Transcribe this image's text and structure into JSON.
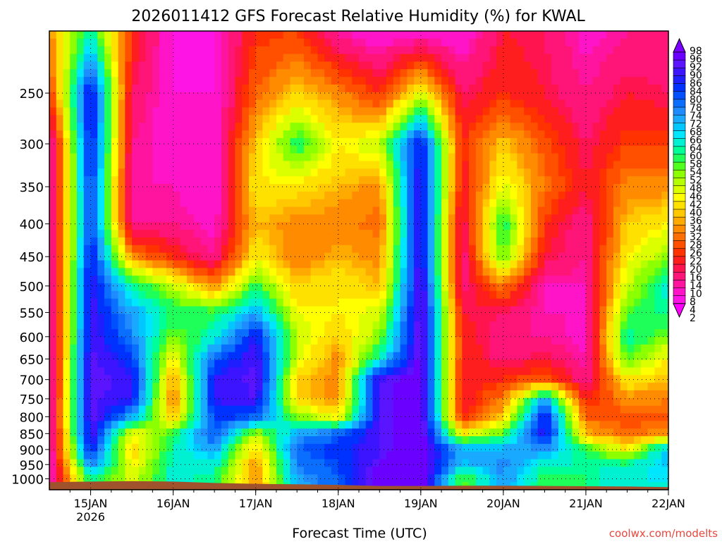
{
  "chart_data": {
    "type": "heatmap",
    "title": "2026011412 GFS Forecast Relative Humidity (%) for KWAL",
    "xlabel": "Forecast Time (UTC)",
    "ylabel": "",
    "watermark": "coolwx.com/modelts",
    "x_start": "2026-01-14 12Z",
    "x_end": "2026-01-22 00Z",
    "x_ticks": [
      {
        "label": "15JAN",
        "sublabel": "2026",
        "hour": 12
      },
      {
        "label": "16JAN",
        "sublabel": "",
        "hour": 36
      },
      {
        "label": "17JAN",
        "sublabel": "",
        "hour": 60
      },
      {
        "label": "18JAN",
        "sublabel": "",
        "hour": 84
      },
      {
        "label": "19JAN",
        "sublabel": "",
        "hour": 108
      },
      {
        "label": "20JAN",
        "sublabel": "",
        "hour": 132
      },
      {
        "label": "21JAN",
        "sublabel": "",
        "hour": 156
      },
      {
        "label": "22JAN",
        "sublabel": "",
        "hour": 180
      }
    ],
    "xlim_hours": [
      0,
      180
    ],
    "y_axis_unit": "hPa",
    "y_scale": "log-pressure (reversed)",
    "ylim": [
      1040,
      200
    ],
    "y_ticks": [
      250,
      300,
      350,
      400,
      450,
      500,
      550,
      600,
      650,
      700,
      750,
      800,
      850,
      900,
      950,
      1000
    ],
    "grid": true,
    "colorbar": {
      "position": "right",
      "levels": [
        98,
        96,
        92,
        90,
        86,
        84,
        80,
        78,
        74,
        72,
        68,
        66,
        64,
        60,
        58,
        54,
        52,
        48,
        46,
        42,
        40,
        36,
        34,
        32,
        28,
        26,
        22,
        20,
        16,
        14,
        10,
        8,
        4,
        2
      ],
      "colors": [
        "#7a00ff",
        "#6a00ff",
        "#5a14ff",
        "#3c14ff",
        "#1e1eff",
        "#0032ff",
        "#0050ff",
        "#0a6eff",
        "#1e8cff",
        "#19aaff",
        "#00c8ff",
        "#00e6ff",
        "#00f0d2",
        "#00ff96",
        "#1eff5a",
        "#50ff1e",
        "#8cff00",
        "#b4ff00",
        "#dcff00",
        "#ffff00",
        "#ffe100",
        "#ffc800",
        "#ffaa00",
        "#ff8c00",
        "#ff6e00",
        "#ff5000",
        "#ff3200",
        "#ff1e1e",
        "#ff1450",
        "#ff1478",
        "#ff14a0",
        "#ff14c8",
        "#ff14e6",
        "#ff00ff"
      ]
    },
    "terrain_color": "#a0522d",
    "surface_pressure_hpa": [
      1012,
      1010,
      1008,
      1010,
      1015,
      1018,
      1020,
      1022,
      1026,
      1026,
      1025,
      1025,
      1026,
      1027,
      1028,
      1030
    ],
    "rh_grid": {
      "description": "Relative humidity (%) sampled every 12 h (hour 0..180) at the listed pressure levels",
      "hours": [
        0,
        12,
        24,
        36,
        48,
        60,
        72,
        84,
        96,
        108,
        120,
        132,
        144,
        156,
        168,
        180
      ],
      "levels_hpa": [
        200,
        250,
        300,
        350,
        400,
        450,
        500,
        550,
        600,
        650,
        700,
        750,
        800,
        850,
        900,
        950,
        1000
      ],
      "values": [
        [
          30,
          20,
          5,
          5,
          4,
          4,
          4,
          4,
          3,
          3,
          4,
          4,
          6,
          4,
          3,
          3,
          4
        ],
        [
          60,
          88,
          86,
          84,
          82,
          86,
          88,
          88,
          90,
          92,
          92,
          92,
          92,
          90,
          86,
          74,
          60
        ],
        [
          20,
          14,
          10,
          8,
          10,
          30,
          60,
          70,
          74,
          80,
          88,
          86,
          70,
          40,
          36,
          40,
          44
        ],
        [
          4,
          4,
          6,
          8,
          10,
          20,
          46,
          58,
          50,
          40,
          30,
          28,
          34,
          56,
          60,
          62,
          62
        ],
        [
          4,
          4,
          4,
          4,
          6,
          10,
          30,
          56,
          62,
          78,
          86,
          86,
          82,
          80,
          70,
          62,
          58
        ],
        [
          20,
          26,
          36,
          40,
          34,
          40,
          56,
          70,
          86,
          90,
          92,
          90,
          78,
          48,
          36,
          30,
          30
        ],
        [
          22,
          36,
          58,
          38,
          30,
          28,
          36,
          42,
          46,
          44,
          36,
          36,
          50,
          70,
          78,
          74,
          70
        ],
        [
          8,
          30,
          40,
          34,
          30,
          34,
          40,
          40,
          36,
          30,
          30,
          30,
          40,
          78,
          82,
          80,
          78
        ],
        [
          4,
          20,
          46,
          30,
          26,
          30,
          34,
          44,
          50,
          62,
          90,
          90,
          90,
          90,
          90,
          92,
          96
        ],
        [
          4,
          44,
          86,
          90,
          90,
          90,
          92,
          94,
          94,
          94,
          96,
          96,
          96,
          96,
          96,
          96,
          96
        ],
        [
          4,
          14,
          20,
          16,
          12,
          10,
          12,
          16,
          20,
          20,
          18,
          16,
          20,
          40,
          70,
          66,
          52
        ],
        [
          16,
          20,
          36,
          44,
          58,
          54,
          28,
          14,
          10,
          12,
          20,
          28,
          36,
          54,
          70,
          74,
          72
        ],
        [
          14,
          16,
          24,
          28,
          20,
          16,
          8,
          8,
          10,
          16,
          26,
          70,
          86,
          88,
          72,
          60,
          56
        ],
        [
          6,
          10,
          14,
          16,
          10,
          10,
          8,
          8,
          6,
          8,
          10,
          18,
          26,
          34,
          56,
          60,
          58
        ],
        [
          10,
          16,
          22,
          30,
          36,
          40,
          46,
          54,
          60,
          54,
          40,
          30,
          24,
          26,
          40,
          60,
          64
        ],
        [
          10,
          14,
          22,
          30,
          40,
          50,
          62,
          60,
          50,
          40,
          34,
          28,
          26,
          30,
          70,
          68,
          64
        ]
      ]
    }
  }
}
